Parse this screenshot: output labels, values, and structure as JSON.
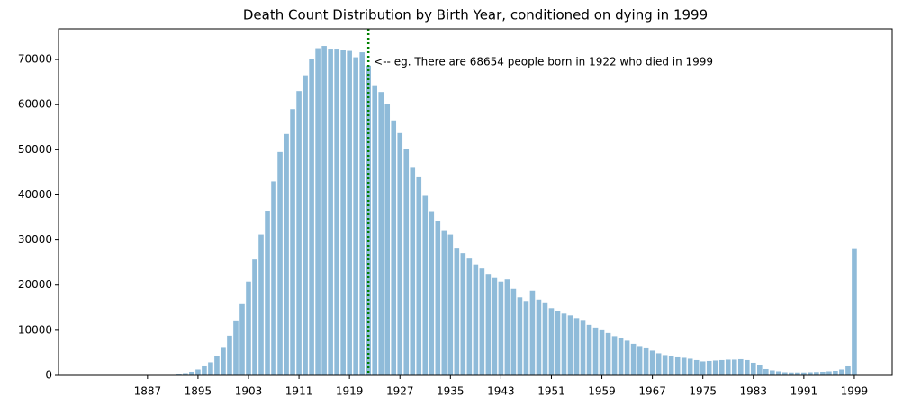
{
  "chart_data": {
    "type": "bar",
    "title": "Death Count Distribution by Birth Year, conditioned on dying in 1999",
    "x": [
      1887,
      1888,
      1889,
      1890,
      1891,
      1892,
      1893,
      1894,
      1895,
      1896,
      1897,
      1898,
      1899,
      1900,
      1901,
      1902,
      1903,
      1904,
      1905,
      1906,
      1907,
      1908,
      1909,
      1910,
      1911,
      1912,
      1913,
      1914,
      1915,
      1916,
      1917,
      1918,
      1919,
      1920,
      1921,
      1922,
      1923,
      1924,
      1925,
      1926,
      1927,
      1928,
      1929,
      1930,
      1931,
      1932,
      1933,
      1934,
      1935,
      1936,
      1937,
      1938,
      1939,
      1940,
      1941,
      1942,
      1943,
      1944,
      1945,
      1946,
      1947,
      1948,
      1949,
      1950,
      1951,
      1952,
      1953,
      1954,
      1955,
      1956,
      1957,
      1958,
      1959,
      1960,
      1961,
      1962,
      1963,
      1964,
      1965,
      1966,
      1967,
      1968,
      1969,
      1970,
      1971,
      1972,
      1973,
      1974,
      1975,
      1976,
      1977,
      1978,
      1979,
      1980,
      1981,
      1982,
      1983,
      1984,
      1985,
      1986,
      1987,
      1988,
      1989,
      1990,
      1991,
      1992,
      1993,
      1994,
      1995,
      1996,
      1997,
      1998,
      1999
    ],
    "values": [
      0,
      0,
      50,
      50,
      100,
      300,
      500,
      800,
      1300,
      2000,
      2900,
      4300,
      6100,
      8800,
      12000,
      15800,
      20800,
      25700,
      31200,
      36500,
      43000,
      49500,
      53500,
      59000,
      63000,
      66500,
      70200,
      72500,
      73000,
      72400,
      72400,
      72200,
      71900,
      70500,
      71600,
      68654,
      64300,
      62800,
      60200,
      56500,
      53700,
      50100,
      46000,
      43900,
      39800,
      36400,
      34300,
      32000,
      31200,
      28100,
      27100,
      25900,
      24600,
      23700,
      22500,
      21600,
      20800,
      21300,
      19200,
      17300,
      16500,
      18800,
      16800,
      16000,
      14900,
      14200,
      13700,
      13300,
      12700,
      12100,
      11200,
      10600,
      10000,
      9400,
      8700,
      8300,
      7700,
      7000,
      6500,
      6000,
      5500,
      4900,
      4500,
      4200,
      4000,
      3900,
      3700,
      3400,
      3100,
      3200,
      3300,
      3400,
      3500,
      3500,
      3600,
      3400,
      2800,
      2200,
      1400,
      1100,
      900,
      700,
      650,
      650,
      650,
      700,
      750,
      800,
      900,
      1000,
      1300,
      2000,
      28000
    ],
    "color": "#8fbbd9",
    "xlim": [
      1872.9,
      2005
    ],
    "xticks": [
      1887,
      1895,
      1903,
      1911,
      1919,
      1927,
      1935,
      1943,
      1951,
      1959,
      1967,
      1975,
      1983,
      1991,
      1999
    ],
    "ylim": [
      0,
      76800
    ],
    "yticks": [
      0,
      10000,
      20000,
      30000,
      40000,
      50000,
      60000,
      70000
    ],
    "vline": {
      "x": 1922,
      "color": "#008000"
    },
    "annotation": {
      "text": "<-- eg. There are 68654 people born in 1922 who died in 1999",
      "x": 1922,
      "y": 69400
    }
  }
}
